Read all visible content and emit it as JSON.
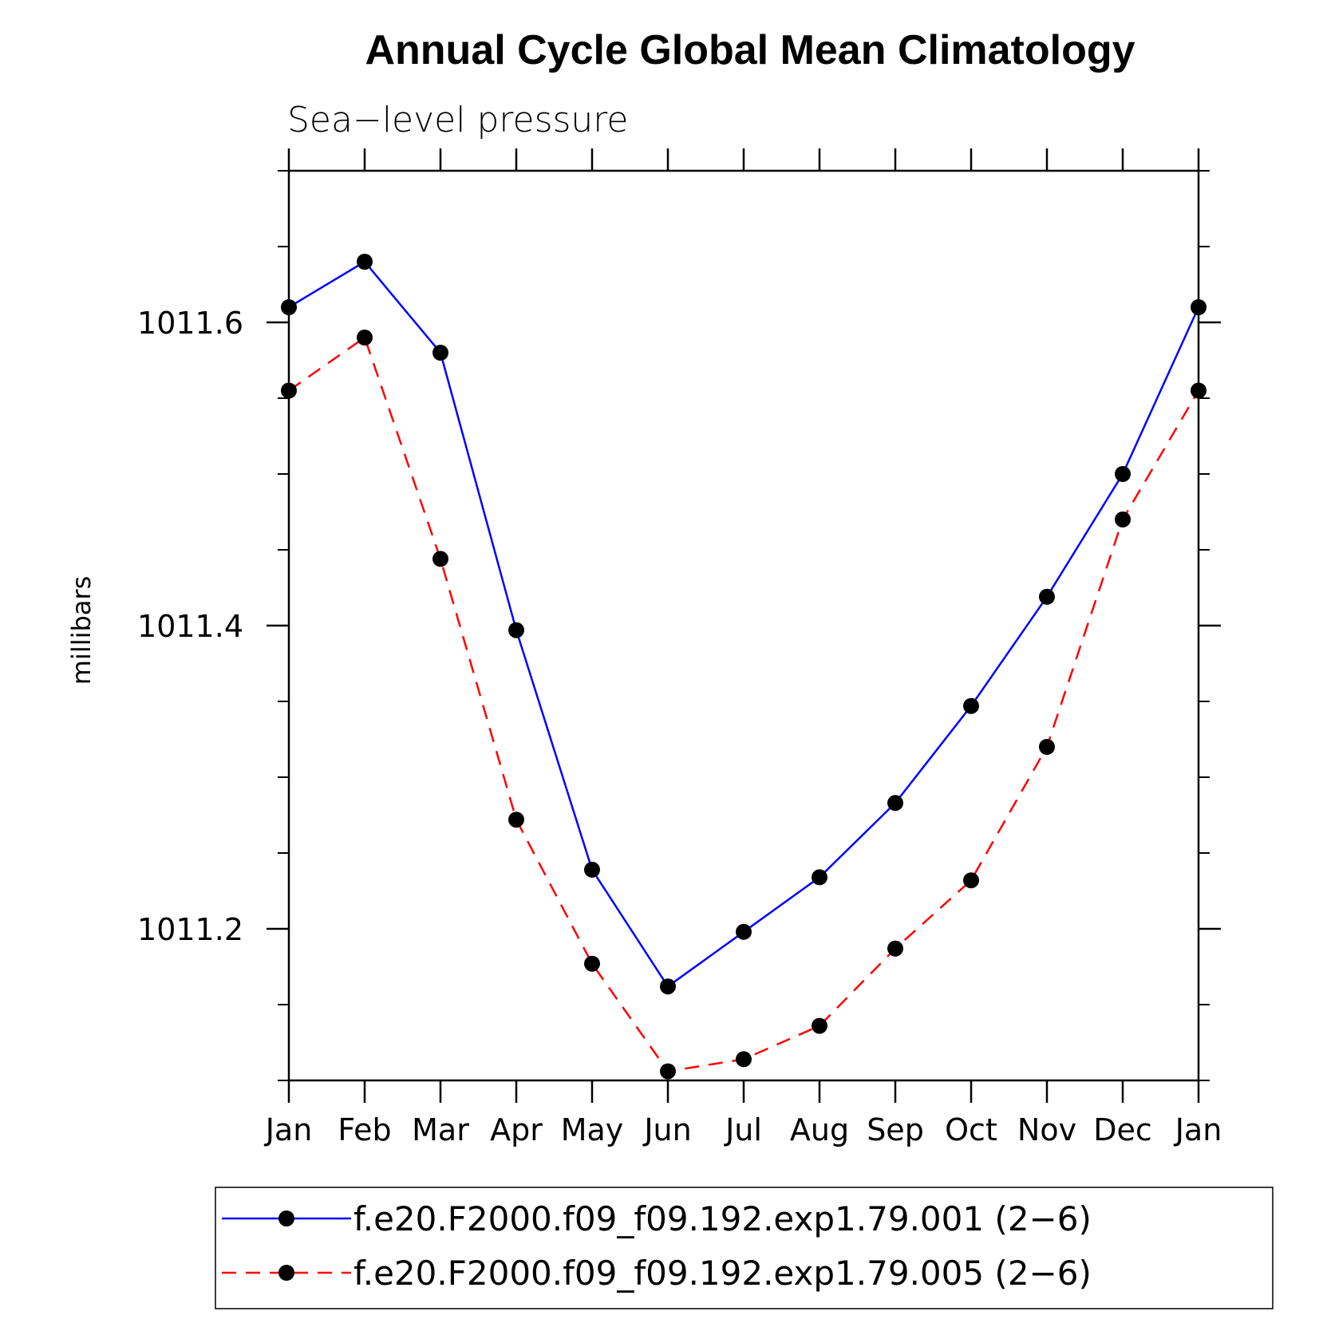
{
  "chart_data": {
    "type": "line",
    "title": "Annual Cycle Global Mean Climatology",
    "subtitle": "Sea−level pressure",
    "ylabel": "millibars",
    "xlabel": "",
    "categories": [
      "Jan",
      "Feb",
      "Mar",
      "Apr",
      "May",
      "Jun",
      "Jul",
      "Aug",
      "Sep",
      "Oct",
      "Nov",
      "Dec",
      "Jan"
    ],
    "ylim": [
      1011.1,
      1011.7
    ],
    "yticks": [
      1011.2,
      1011.4,
      1011.6
    ],
    "ytick_labels": [
      "1011.2",
      "1011.4",
      "1011.6"
    ],
    "series": [
      {
        "name": "f.e20.F2000.f09_f09.192.exp1.79.001 (2−6)",
        "color": "#0000ff",
        "style": "solid",
        "marker": "filled-circle",
        "values": [
          1011.61,
          1011.64,
          1011.58,
          1011.397,
          1011.239,
          1011.162,
          1011.198,
          1011.234,
          1011.283,
          1011.347,
          1011.419,
          1011.5,
          1011.61
        ]
      },
      {
        "name": "f.e20.F2000.f09_f09.192.exp1.79.005 (2−6)",
        "color": "#ff0000",
        "style": "dashed",
        "marker": "filled-circle",
        "values": [
          1011.555,
          1011.59,
          1011.444,
          1011.272,
          1011.177,
          1011.106,
          1011.114,
          1011.136,
          1011.187,
          1011.232,
          1011.32,
          1011.47,
          1011.555
        ]
      }
    ],
    "grid": false,
    "legend_position": "bottom"
  }
}
